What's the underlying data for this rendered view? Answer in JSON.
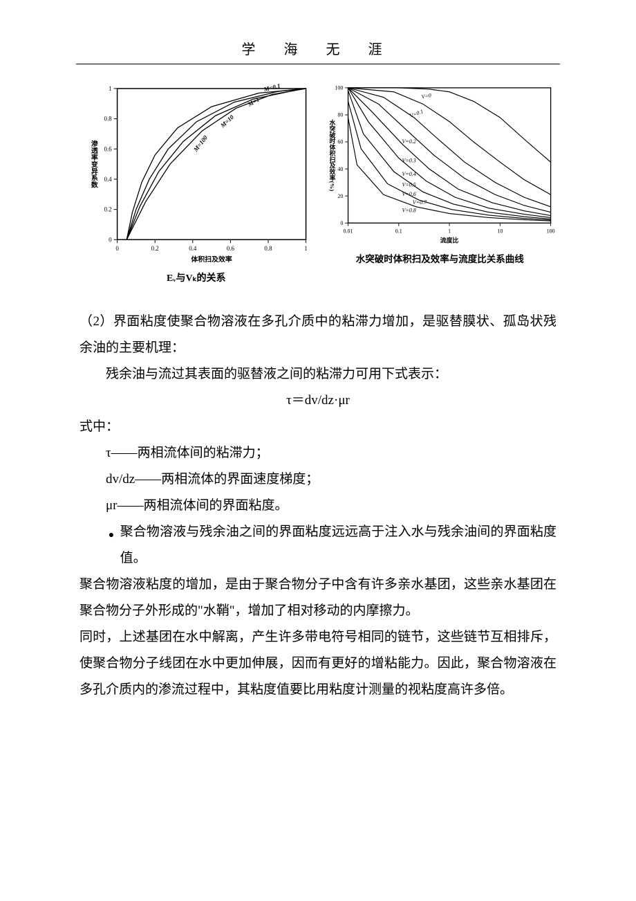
{
  "header": {
    "title": "学 海 无 涯"
  },
  "chart1": {
    "type": "line",
    "caption": "Eᵥ与Vₖ的关系",
    "xlabel": "体积扫及效率",
    "ylabel": "渗透率变异系数",
    "xlim": [
      0,
      1.0
    ],
    "ylim": [
      0,
      1.0
    ],
    "xticks": [
      0,
      0.2,
      0.4,
      0.6,
      0.8,
      1.0
    ],
    "yticks": [
      0,
      0.2,
      0.4,
      0.6,
      0.8,
      1.0
    ],
    "tick_fontsize": 9,
    "label_fontsize": 10,
    "background_color": "#ffffff",
    "axis_color": "#000000",
    "line_color": "#000000",
    "line_width": 1.3,
    "curves": [
      {
        "label": "M=0.1",
        "label_x": 0.78,
        "label_y": 0.98,
        "rot": -14,
        "pts": [
          [
            0.05,
            0
          ],
          [
            0.15,
            0.25
          ],
          [
            0.28,
            0.5
          ],
          [
            0.45,
            0.72
          ],
          [
            0.63,
            0.87
          ],
          [
            0.82,
            0.96
          ],
          [
            1.0,
            1.0
          ]
        ]
      },
      {
        "label": "M=1",
        "label_x": 0.7,
        "label_y": 0.88,
        "rot": -30,
        "pts": [
          [
            0.05,
            0
          ],
          [
            0.12,
            0.22
          ],
          [
            0.22,
            0.45
          ],
          [
            0.35,
            0.65
          ],
          [
            0.52,
            0.82
          ],
          [
            0.72,
            0.93
          ],
          [
            0.95,
            0.99
          ],
          [
            1.0,
            1.0
          ]
        ]
      },
      {
        "label": "M=10",
        "label_x": 0.56,
        "label_y": 0.74,
        "rot": -42,
        "pts": [
          [
            0.05,
            0
          ],
          [
            0.1,
            0.2
          ],
          [
            0.17,
            0.4
          ],
          [
            0.27,
            0.6
          ],
          [
            0.42,
            0.78
          ],
          [
            0.62,
            0.91
          ],
          [
            0.85,
            0.98
          ],
          [
            1.0,
            1.0
          ]
        ]
      },
      {
        "label": "M=100",
        "label_x": 0.42,
        "label_y": 0.58,
        "rot": -52,
        "pts": [
          [
            0.05,
            0
          ],
          [
            0.08,
            0.18
          ],
          [
            0.13,
            0.38
          ],
          [
            0.2,
            0.56
          ],
          [
            0.32,
            0.74
          ],
          [
            0.5,
            0.88
          ],
          [
            0.75,
            0.97
          ],
          [
            1.0,
            1.0
          ]
        ]
      }
    ]
  },
  "chart2": {
    "type": "line-semilogx",
    "caption": "水突破时体积扫及效率与流度比关系曲线",
    "xlabel": "流度比",
    "ylabel": "水突破时体积扫及效率(%)",
    "xlim": [
      0.01,
      100
    ],
    "ylim": [
      0,
      100
    ],
    "xticks_log": [
      0.01,
      0.1,
      1,
      10,
      100
    ],
    "yticks": [
      0,
      20,
      40,
      60,
      80,
      100
    ],
    "tick_fontsize": 9,
    "label_fontsize": 10,
    "background_color": "#ffffff",
    "axis_color": "#000000",
    "line_color": "#000000",
    "line_width": 1.3,
    "label_fontstyle": "italic",
    "curves": [
      {
        "label": "V=0",
        "ly": 92,
        "rot": -10,
        "lx": 78,
        "pts": [
          [
            0.01,
            100
          ],
          [
            0.1,
            100
          ],
          [
            0.4,
            99
          ],
          [
            1,
            97
          ],
          [
            3,
            90
          ],
          [
            10,
            78
          ],
          [
            30,
            62
          ],
          [
            100,
            45
          ]
        ]
      },
      {
        "label": "V=0.1",
        "ly": 78,
        "rot": -20,
        "lx": 62,
        "pts": [
          [
            0.01,
            100
          ],
          [
            0.08,
            97
          ],
          [
            0.3,
            88
          ],
          [
            1,
            75
          ],
          [
            3,
            60
          ],
          [
            10,
            45
          ],
          [
            30,
            32
          ],
          [
            100,
            21
          ]
        ]
      },
      {
        "label": "V=0.2",
        "ly": 59,
        "rot": 0,
        "lx": 50,
        "pts": [
          [
            0.01,
            100
          ],
          [
            0.05,
            93
          ],
          [
            0.2,
            78
          ],
          [
            0.6,
            62
          ],
          [
            2,
            45
          ],
          [
            8,
            30
          ],
          [
            30,
            19
          ],
          [
            100,
            12
          ]
        ]
      },
      {
        "label": "V=0.3",
        "ly": 45,
        "rot": 0,
        "lx": 50,
        "pts": [
          [
            0.01,
            100
          ],
          [
            0.04,
            88
          ],
          [
            0.15,
            68
          ],
          [
            0.5,
            50
          ],
          [
            2,
            33
          ],
          [
            8,
            21
          ],
          [
            30,
            13
          ],
          [
            100,
            8
          ]
        ]
      },
      {
        "label": "V=0.4",
        "ly": 35,
        "rot": 0,
        "lx": 50,
        "pts": [
          [
            0.01,
            100
          ],
          [
            0.03,
            82
          ],
          [
            0.12,
            58
          ],
          [
            0.4,
            40
          ],
          [
            1.5,
            25
          ],
          [
            7,
            15
          ],
          [
            30,
            9
          ],
          [
            100,
            5.5
          ]
        ]
      },
      {
        "label": "V=0.5",
        "ly": 27,
        "rot": 0,
        "lx": 50,
        "pts": [
          [
            0.01,
            100
          ],
          [
            0.025,
            75
          ],
          [
            0.1,
            48
          ],
          [
            0.35,
            31
          ],
          [
            1.3,
            19
          ],
          [
            6,
            11
          ],
          [
            30,
            6.5
          ],
          [
            100,
            4
          ]
        ]
      },
      {
        "label": "V=0.6",
        "ly": 20,
        "rot": 0,
        "lx": 50,
        "pts": [
          [
            0.01,
            98
          ],
          [
            0.02,
            66
          ],
          [
            0.08,
            38
          ],
          [
            0.3,
            23
          ],
          [
            1.2,
            14
          ],
          [
            6,
            8
          ],
          [
            30,
            4.7
          ],
          [
            100,
            3
          ]
        ]
      },
      {
        "label": "V=0.7",
        "ly": 14,
        "rot": 0,
        "lx": 65,
        "pts": [
          [
            0.01,
            90
          ],
          [
            0.018,
            55
          ],
          [
            0.06,
            29
          ],
          [
            0.25,
            17
          ],
          [
            1.1,
            10
          ],
          [
            6,
            5.8
          ],
          [
            30,
            3.4
          ],
          [
            100,
            2.2
          ]
        ]
      },
      {
        "label": "V=0.8",
        "ly": 8,
        "rot": 0,
        "lx": 50,
        "pts": [
          [
            0.01,
            78
          ],
          [
            0.015,
            43
          ],
          [
            0.05,
            21
          ],
          [
            0.22,
            12
          ],
          [
            1,
            7
          ],
          [
            6,
            4
          ],
          [
            30,
            2.4
          ],
          [
            100,
            1.6
          ]
        ]
      }
    ]
  },
  "text": {
    "p1": "（2）界面粘度使聚合物溶液在多孔介质中的粘滞力增加，是驱替膜状、孤岛状残余油的主要机理：",
    "p2": "残余油与流过其表面的驱替液之间的粘滞力可用下式表示：",
    "formula": "τ＝dv/dz·μr",
    "p3": "式中：",
    "d1": "τ——两相流体间的粘滞力；",
    "d2": "dv/dz——两相流体的界面速度梯度；",
    "d3": "μr——两相流体间的界面粘度。",
    "bullet": "聚合物溶液与残余油之间的界面粘度远远高于注入水与残余油间的界面粘度值。",
    "p4": "聚合物溶液粘度的增加，是由于聚合物分子中含有许多亲水基团，这些亲水基团在聚合物分子外形成的\"水鞘\"，增加了相对移动的内摩擦力。",
    "p5": "同时，上述基团在水中解离，产生许多带电符号相同的链节，这些链节互相排斥，使聚合物分子线团在水中更加伸展，因而有更好的增粘能力。因此，聚合物溶液在多孔介质内的渗流过程中，其粘度值要比用粘度计测量的视粘度高许多倍。"
  }
}
